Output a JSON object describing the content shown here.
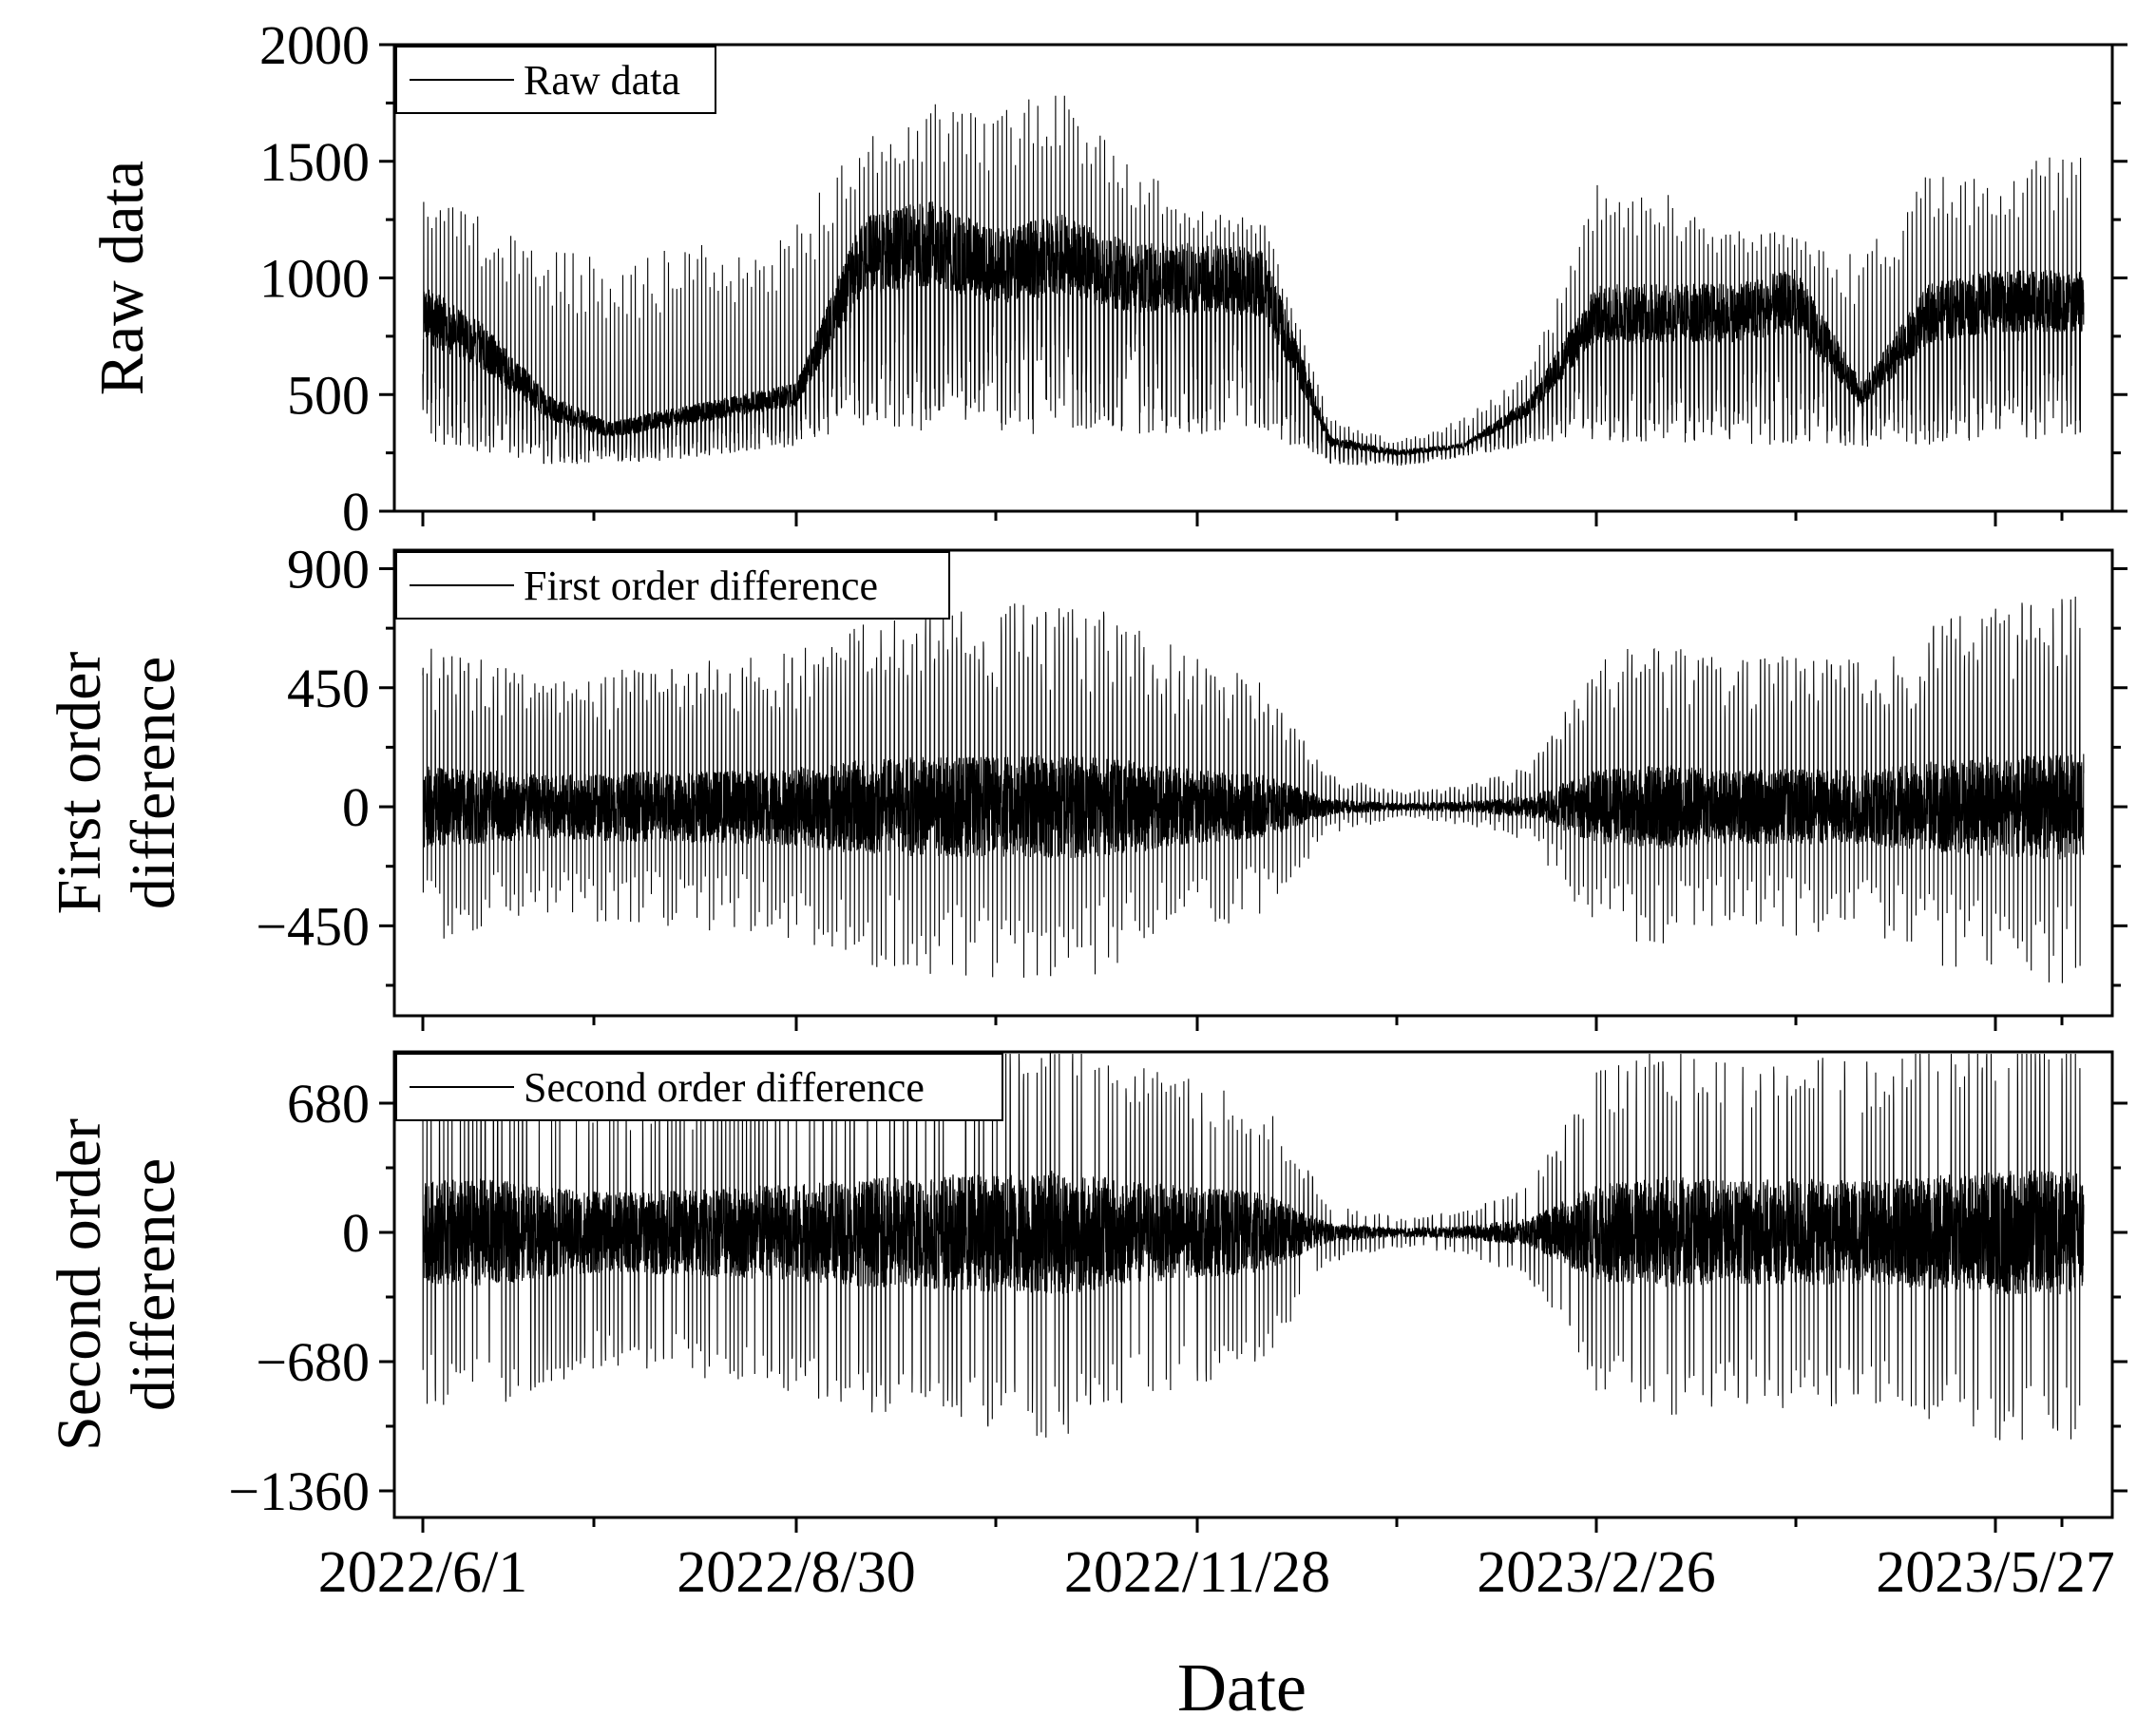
{
  "chart_data": [
    {
      "type": "line",
      "panel": "raw",
      "title": "",
      "xlabel": "",
      "ylabel": "Raw data",
      "ylim": [
        0,
        2000
      ],
      "yticks": [
        0,
        500,
        1000,
        1500,
        2000
      ],
      "ytick_labels": [
        "0",
        "500",
        "1000",
        "1500",
        "2000"
      ],
      "legend": {
        "placement": "top-left",
        "label": "Raw data"
      },
      "series": [
        {
          "name": "Raw data",
          "envelope_day": [
            0,
            15,
            30,
            45,
            60,
            75,
            90,
            105,
            120,
            135,
            150,
            165,
            180,
            195,
            210,
            225,
            240,
            255,
            270,
            285,
            300,
            315,
            330,
            345,
            360,
            375
          ],
          "envelope_center": [
            850,
            700,
            450,
            350,
            400,
            450,
            500,
            1100,
            1150,
            1050,
            1100,
            1000,
            1000,
            980,
            300,
            250,
            280,
            450,
            850,
            850,
            850,
            900,
            500,
            850,
            900,
            900
          ],
          "envelope_low": [
            300,
            250,
            200,
            200,
            220,
            250,
            280,
            350,
            330,
            330,
            330,
            330,
            330,
            330,
            200,
            190,
            230,
            280,
            300,
            280,
            280,
            280,
            270,
            280,
            300,
            300
          ],
          "envelope_high": [
            1400,
            1250,
            1150,
            1100,
            1150,
            1150,
            1250,
            1600,
            1750,
            1700,
            1850,
            1500,
            1300,
            1250,
            400,
            300,
            400,
            600,
            1400,
            1400,
            1200,
            1200,
            1100,
            1450,
            1450,
            1550
          ]
        }
      ]
    },
    {
      "type": "line",
      "panel": "first",
      "title": "",
      "xlabel": "",
      "ylabel": "First order difference",
      "ylim": [
        -790,
        970
      ],
      "yticks": [
        -450,
        0,
        450,
        900
      ],
      "ytick_labels": [
        "−450",
        "0",
        "450",
        "900"
      ],
      "legend": {
        "placement": "top-left",
        "label": "First order difference"
      },
      "series": [
        {
          "name": "First order difference",
          "envelope_day": [
            0,
            15,
            30,
            45,
            60,
            75,
            90,
            105,
            120,
            135,
            150,
            165,
            180,
            195,
            210,
            225,
            240,
            255,
            270,
            285,
            300,
            315,
            330,
            345,
            360,
            375
          ],
          "envelope_amplitude": [
            620,
            560,
            480,
            520,
            540,
            560,
            600,
            720,
            760,
            760,
            800,
            700,
            560,
            480,
            120,
            60,
            80,
            160,
            560,
            640,
            560,
            580,
            560,
            700,
            760,
            800
          ]
        }
      ]
    },
    {
      "type": "line",
      "panel": "second",
      "title": "",
      "xlabel": "Date",
      "ylabel": "Second order difference",
      "ylim": [
        -1500,
        950
      ],
      "yticks": [
        -1360,
        -680,
        0,
        680
      ],
      "ytick_labels": [
        "−1360",
        "−680",
        "0",
        "680"
      ],
      "legend": {
        "placement": "top-left",
        "label": "Second order difference"
      },
      "xticks": [
        "2022/6/1",
        "2022/8/30",
        "2022/11/28",
        "2023/2/26",
        "2023/5/27"
      ],
      "series": [
        {
          "name": "Second order difference",
          "envelope_day": [
            0,
            15,
            30,
            45,
            60,
            75,
            90,
            105,
            120,
            135,
            150,
            165,
            180,
            195,
            210,
            225,
            240,
            255,
            270,
            285,
            300,
            315,
            330,
            345,
            360,
            375
          ],
          "envelope_amplitude": [
            900,
            950,
            800,
            700,
            750,
            800,
            850,
            950,
            1000,
            1050,
            1100,
            900,
            800,
            700,
            160,
            80,
            110,
            250,
            850,
            1000,
            900,
            950,
            900,
            1000,
            1100,
            1100
          ]
        }
      ]
    }
  ]
}
